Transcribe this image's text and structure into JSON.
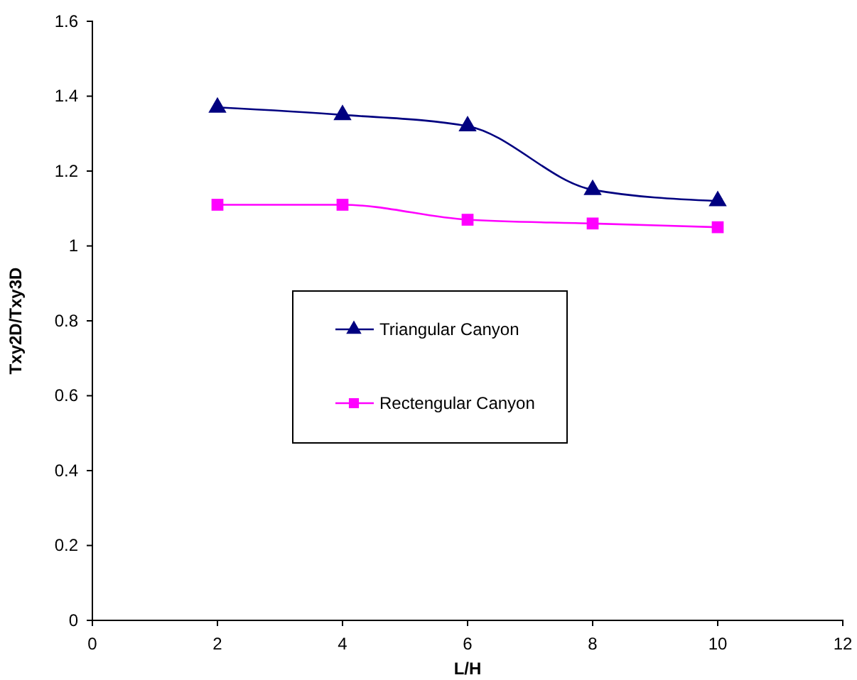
{
  "chart_data": {
    "type": "line",
    "xlabel": "L/H",
    "ylabel": "Txy2D/Txy3D",
    "x": [
      2,
      4,
      6,
      8,
      10
    ],
    "series": [
      {
        "name": "Triangular Canyon",
        "color": "#000080",
        "marker": "triangle",
        "values": [
          1.37,
          1.35,
          1.32,
          1.15,
          1.12
        ]
      },
      {
        "name": "Rectengular Canyon",
        "color": "#ff00ff",
        "marker": "square",
        "values": [
          1.11,
          1.11,
          1.07,
          1.06,
          1.05
        ]
      }
    ],
    "xlim": [
      0,
      12
    ],
    "xticks": [
      0,
      2,
      4,
      6,
      8,
      10,
      12
    ],
    "ylim": [
      0,
      1.6
    ],
    "yticks": [
      0,
      0.2,
      0.4,
      0.6,
      0.8,
      1,
      1.2,
      1.4,
      1.6
    ],
    "grid": false,
    "legend": "center left"
  }
}
